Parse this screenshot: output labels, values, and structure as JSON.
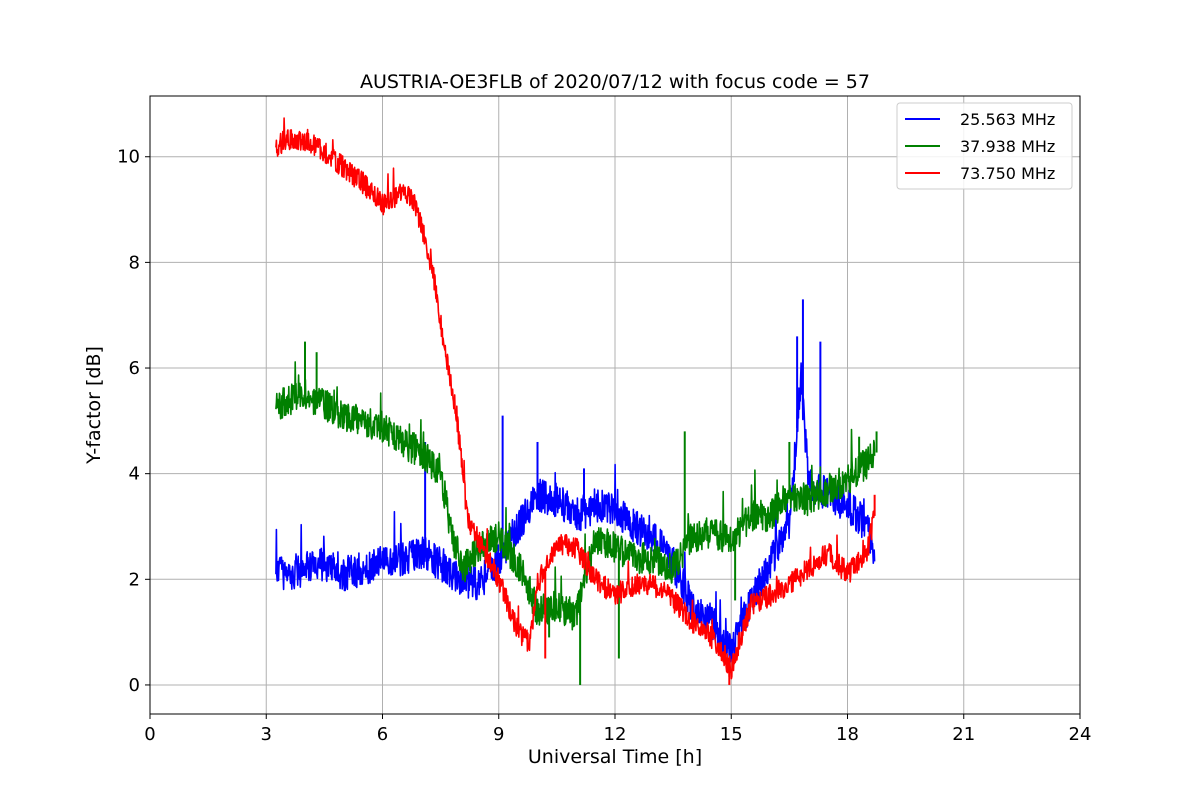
{
  "chart_data": {
    "type": "line",
    "title": "AUSTRIA-OE3FLB of 2020/07/12 with focus code = 57",
    "xlabel": "Universal Time [h]",
    "ylabel": "Y-factor [dB]",
    "xlim": [
      0,
      24
    ],
    "ylim": [
      -0.55,
      11.15
    ],
    "xticks": [
      0,
      3,
      6,
      9,
      12,
      15,
      18,
      21,
      24
    ],
    "yticks": [
      0,
      2,
      4,
      6,
      8,
      10
    ],
    "grid": true,
    "legend_position": "top-right",
    "series": [
      {
        "name": "25.563 MHz",
        "color": "#0000ff",
        "noise": 0.55,
        "x": [
          3.25,
          3.5,
          4.0,
          4.5,
          5.0,
          5.5,
          6.0,
          6.5,
          7.0,
          7.5,
          8.0,
          8.5,
          9.0,
          9.5,
          10.0,
          10.5,
          11.0,
          11.5,
          12.0,
          12.5,
          13.0,
          13.5,
          14.0,
          14.5,
          15.0,
          15.5,
          16.0,
          16.5,
          16.8,
          17.0,
          17.5,
          18.0,
          18.5,
          18.7
        ],
        "y": [
          2.2,
          2.1,
          2.2,
          2.3,
          2.1,
          2.2,
          2.3,
          2.4,
          2.5,
          2.3,
          2.0,
          1.9,
          2.4,
          3.0,
          3.6,
          3.5,
          3.2,
          3.4,
          3.3,
          3.0,
          2.8,
          2.3,
          1.5,
          1.2,
          0.6,
          1.6,
          2.3,
          3.0,
          5.8,
          3.8,
          3.6,
          3.4,
          3.0,
          2.4
        ],
        "spikes": [
          [
            9.1,
            5.1
          ],
          [
            16.85,
            7.3
          ],
          [
            16.7,
            6.6
          ],
          [
            17.3,
            6.5
          ],
          [
            10.0,
            4.6
          ],
          [
            11.2,
            4.1
          ],
          [
            7.1,
            4.6
          ]
        ]
      },
      {
        "name": "37.938 MHz",
        "color": "#008000",
        "noise": 0.5,
        "x": [
          3.25,
          4.0,
          5.0,
          6.0,
          6.5,
          7.0,
          7.5,
          7.8,
          8.1,
          8.5,
          9.0,
          9.5,
          10.0,
          10.5,
          11.0,
          11.5,
          12.0,
          12.5,
          13.0,
          13.5,
          14.0,
          14.5,
          15.0,
          15.5,
          16.0,
          16.5,
          17.0,
          17.5,
          18.0,
          18.5,
          18.7
        ],
        "y": [
          5.3,
          5.5,
          5.1,
          4.9,
          4.6,
          4.4,
          4.0,
          2.8,
          2.2,
          2.6,
          2.8,
          2.3,
          1.4,
          1.5,
          1.3,
          2.8,
          2.6,
          2.4,
          2.4,
          2.2,
          2.8,
          2.9,
          2.7,
          3.2,
          3.2,
          3.6,
          3.5,
          3.7,
          3.9,
          4.2,
          4.4
        ],
        "spikes": [
          [
            4.0,
            6.5
          ],
          [
            4.3,
            6.3
          ],
          [
            11.1,
            0.0
          ],
          [
            12.1,
            0.5
          ],
          [
            13.8,
            4.8
          ],
          [
            15.1,
            1.6
          ],
          [
            16.5,
            4.6
          ],
          [
            18.3,
            4.7
          ],
          [
            18.75,
            4.8
          ],
          [
            10.3,
            0.9
          ]
        ]
      },
      {
        "name": "73.750 MHz",
        "color": "#ff0000",
        "noise": 0.35,
        "x": [
          3.25,
          3.5,
          4.0,
          4.5,
          5.0,
          5.5,
          6.0,
          6.5,
          6.8,
          7.0,
          7.3,
          7.6,
          7.9,
          8.2,
          8.5,
          9.0,
          9.5,
          9.8,
          10.0,
          10.5,
          11.0,
          11.5,
          12.0,
          12.5,
          13.0,
          13.5,
          14.0,
          14.5,
          14.9,
          15.0,
          15.5,
          16.0,
          16.5,
          17.0,
          17.5,
          18.0,
          18.5,
          18.7
        ],
        "y": [
          10.2,
          10.3,
          10.3,
          10.1,
          9.8,
          9.5,
          9.1,
          9.3,
          9.2,
          8.7,
          7.8,
          6.4,
          5.2,
          3.1,
          2.7,
          2.0,
          1.0,
          0.8,
          1.9,
          2.7,
          2.6,
          2.0,
          1.7,
          1.9,
          1.9,
          1.6,
          1.2,
          0.9,
          0.4,
          0.3,
          1.5,
          1.7,
          1.9,
          2.2,
          2.5,
          2.1,
          2.5,
          3.2
        ],
        "spikes": [
          [
            10.2,
            0.5
          ],
          [
            14.95,
            0.0
          ],
          [
            18.7,
            3.6
          ]
        ]
      }
    ]
  }
}
